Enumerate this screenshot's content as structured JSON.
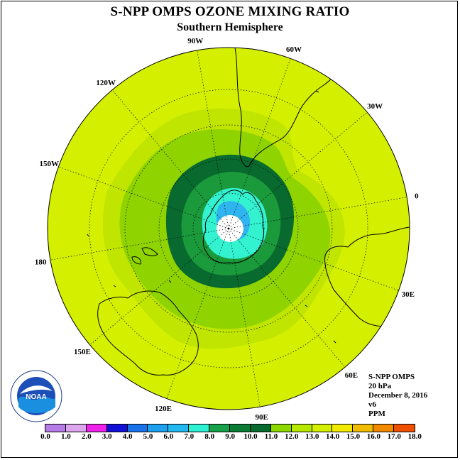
{
  "header": {
    "title": "S-NPP OMPS OZONE MIXING RATIO",
    "subtitle": "Southern Hemisphere"
  },
  "map": {
    "projection": "south-polar-stereographic",
    "longitude_labels": [
      {
        "text": "90W",
        "lon": -90
      },
      {
        "text": "60W",
        "lon": -60
      },
      {
        "text": "30W",
        "lon": -30
      },
      {
        "text": "0",
        "lon": 0
      },
      {
        "text": "30E",
        "lon": 30
      },
      {
        "text": "60E",
        "lon": 60
      },
      {
        "text": "90E",
        "lon": 90
      },
      {
        "text": "120E",
        "lon": 120
      },
      {
        "text": "150E",
        "lon": 150
      },
      {
        "text": "180",
        "lon": 180
      },
      {
        "text": "150W",
        "lon": -150
      },
      {
        "text": "120W",
        "lon": -120
      }
    ],
    "field_colors": {
      "background": "#d4f000",
      "outer_band": "#bfe500",
      "mid_band": "#8fd400",
      "inner_green": "#1a9a3a",
      "dark_ring": "#086a2e",
      "cyan": "#33f2d0",
      "blue_patch": "#2fb4f0",
      "pole": "#ffffff"
    }
  },
  "info_block": {
    "instrument": "S-NPP OMPS",
    "level": "20 hPa",
    "date": "December 8, 2016",
    "version": "v6",
    "units": "PPM"
  },
  "colorbar": {
    "ticks": [
      "0.0",
      "1.0",
      "2.0",
      "3.0",
      "4.0",
      "5.0",
      "6.0",
      "7.0",
      "8.0",
      "9.0",
      "10.0",
      "11.0",
      "12.0",
      "13.0",
      "14.0",
      "15.0",
      "16.0",
      "17.0",
      "18.0"
    ],
    "colors": [
      "#b77be8",
      "#dba6ee",
      "#ee22e8",
      "#1010d8",
      "#1a72ea",
      "#1ea0ee",
      "#24b8f0",
      "#2ef0d2",
      "#18a04a",
      "#0c7c34",
      "#086a2e",
      "#8cd800",
      "#b6e800",
      "#d4f000",
      "#f2ea00",
      "#f0bc00",
      "#f28a00",
      "#ee5000",
      "#e80000",
      "#7a4a2a"
    ]
  },
  "logo": {
    "text": "NOAA",
    "ring_text": "NATIONAL OCEANIC AND ATMOSPHERIC ADMINISTRATION · U.S. DEPARTMENT OF COMMERCE"
  }
}
